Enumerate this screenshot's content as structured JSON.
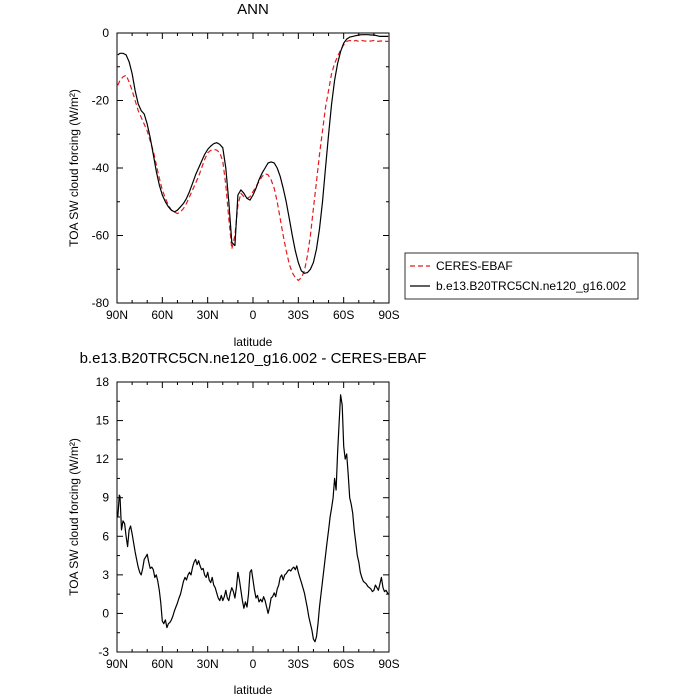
{
  "chart_data": [
    {
      "type": "line",
      "title": "ANN",
      "xlabel": "latitude",
      "ylabel": "TOA SW cloud forcing (W/m²)",
      "x_ticks": [
        90,
        60,
        30,
        0,
        -30,
        -60,
        -90
      ],
      "x_tick_labels": [
        "90N",
        "60N",
        "30N",
        "0",
        "30S",
        "60S",
        "90S"
      ],
      "xlim": [
        90,
        -90
      ],
      "ylim": [
        -80,
        0
      ],
      "y_ticks": [
        0,
        -20,
        -40,
        -60,
        -80
      ],
      "y_tick_labels": [
        "0",
        "-20",
        "-40",
        "-60",
        "-80"
      ],
      "legend_position": "right",
      "series": [
        {
          "name": "CERES-EBAF",
          "color": "#e41a1c",
          "style": "dashed",
          "x": [
            89.5,
            88,
            86,
            84,
            82,
            80,
            78,
            76,
            74,
            72,
            70,
            68,
            66,
            64,
            62,
            60,
            58,
            56,
            54,
            52,
            50,
            48,
            46,
            44,
            42,
            40,
            38,
            36,
            34,
            32,
            30,
            28,
            26,
            24,
            22,
            20,
            18,
            16,
            14,
            12,
            10,
            8,
            6,
            4,
            2,
            0,
            -2,
            -4,
            -6,
            -8,
            -10,
            -12,
            -14,
            -16,
            -18,
            -20,
            -22,
            -24,
            -26,
            -28,
            -30,
            -32,
            -34,
            -36,
            -38,
            -40,
            -42,
            -44,
            -46,
            -48,
            -50,
            -52,
            -54,
            -56,
            -58,
            -60,
            -62,
            -64,
            -66,
            -68,
            -70,
            -72,
            -74,
            -76,
            -78,
            -80,
            -82,
            -84,
            -86,
            -88,
            -89.5
          ],
          "y": [
            -15.5,
            -14,
            -13,
            -12.5,
            -14.5,
            -17,
            -20,
            -23,
            -25,
            -27,
            -29,
            -32,
            -35,
            -39,
            -43,
            -46.5,
            -49,
            -51,
            -52.5,
            -53,
            -53.5,
            -53,
            -52,
            -50.5,
            -48.5,
            -46.5,
            -44.5,
            -42.5,
            -40,
            -37.5,
            -35.5,
            -34.8,
            -34.5,
            -34.7,
            -35.5,
            -38,
            -45,
            -55,
            -64,
            -60,
            -51,
            -47.5,
            -48.5,
            -49,
            -48.5,
            -47,
            -45.5,
            -44,
            -42.5,
            -41.7,
            -42,
            -43.5,
            -46,
            -50,
            -55,
            -60,
            -64.5,
            -68.5,
            -71,
            -72.5,
            -73.3,
            -72.5,
            -70.5,
            -66,
            -60,
            -52,
            -44,
            -36,
            -29,
            -22,
            -17,
            -12,
            -9,
            -7,
            -5,
            -3.5,
            -2.5,
            -2.2,
            -2.5,
            -2.2,
            -2.5,
            -2.2,
            -2.4,
            -2.3,
            -2.4,
            -2.2,
            -2.5,
            -2.4,
            -2.3,
            -2.5,
            -2.5
          ]
        },
        {
          "name": "b.e13.B20TRC5CN.ne120_g16.002",
          "color": "#000000",
          "style": "solid",
          "x": [
            89.5,
            88,
            86,
            84,
            82,
            80,
            78,
            76,
            74,
            72,
            70,
            68,
            66,
            64,
            62,
            60,
            58,
            56,
            54,
            52,
            50,
            48,
            46,
            44,
            42,
            40,
            38,
            36,
            34,
            32,
            30,
            28,
            26,
            24,
            22,
            20,
            18,
            16,
            14,
            12,
            10,
            8,
            6,
            4,
            2,
            0,
            -2,
            -4,
            -6,
            -8,
            -10,
            -12,
            -14,
            -16,
            -18,
            -20,
            -22,
            -24,
            -26,
            -28,
            -30,
            -32,
            -34,
            -36,
            -38,
            -40,
            -42,
            -44,
            -46,
            -48,
            -50,
            -52,
            -54,
            -56,
            -58,
            -60,
            -62,
            -64,
            -66,
            -68,
            -70,
            -72,
            -74,
            -76,
            -78,
            -80,
            -82,
            -84,
            -86,
            -88,
            -89.5
          ],
          "y": [
            -6.5,
            -6,
            -6,
            -6.5,
            -8.5,
            -12,
            -17,
            -21,
            -23,
            -24,
            -27,
            -31,
            -36,
            -41,
            -45,
            -48,
            -50,
            -51.5,
            -52.5,
            -53,
            -52.5,
            -51.5,
            -50.5,
            -49,
            -47,
            -44.5,
            -42,
            -40,
            -38,
            -36,
            -34.5,
            -33.5,
            -32.8,
            -32.5,
            -33,
            -34,
            -40,
            -50,
            -62,
            -63,
            -48,
            -46.5,
            -47.5,
            -49,
            -49.5,
            -48,
            -46,
            -43.5,
            -41.5,
            -40,
            -38.5,
            -38.2,
            -38.5,
            -40,
            -42.5,
            -46,
            -50,
            -55,
            -60,
            -64.5,
            -68,
            -70.5,
            -71.2,
            -71,
            -70,
            -68,
            -64,
            -58,
            -50,
            -40,
            -30,
            -21,
            -14,
            -9,
            -5.5,
            -3,
            -1.8,
            -1.2,
            -1,
            -0.8,
            -0.6,
            -0.5,
            -0.5,
            -0.5,
            -0.6,
            -0.6,
            -0.8,
            -1,
            -1,
            -1,
            -1
          ]
        }
      ]
    },
    {
      "type": "line",
      "title": "b.e13.B20TRC5CN.ne120_g16.002 - CERES-EBAF",
      "xlabel": "latitude",
      "ylabel": "TOA SW cloud forcing (W/m²)",
      "x_ticks": [
        90,
        60,
        30,
        0,
        -30,
        -60,
        -90
      ],
      "x_tick_labels": [
        "90N",
        "60N",
        "30N",
        "0",
        "30S",
        "60S",
        "90S"
      ],
      "xlim": [
        90,
        -90
      ],
      "ylim": [
        -3,
        18
      ],
      "y_ticks": [
        18,
        15,
        12,
        9,
        6,
        3,
        0,
        -3
      ],
      "y_tick_labels": [
        "18",
        "15",
        "12",
        "9",
        "6",
        "3",
        "0",
        "-3"
      ],
      "series": [
        {
          "color": "#000000",
          "style": "solid",
          "x": [
            89.5,
            88.5,
            88,
            87,
            86,
            85,
            84,
            83,
            82,
            81,
            80,
            79,
            78,
            77,
            76,
            75,
            74,
            73,
            72,
            71,
            70,
            69,
            68,
            67,
            66,
            65,
            64,
            63,
            62,
            61,
            60,
            59,
            58,
            57,
            56,
            55,
            54,
            53,
            52,
            51,
            50,
            49,
            48,
            47,
            46,
            45,
            44,
            43,
            42,
            41,
            40,
            39,
            38,
            37,
            36,
            35,
            34,
            33,
            32,
            31,
            30,
            29,
            28,
            27,
            26,
            25,
            24,
            23,
            22,
            21,
            20,
            19,
            18,
            17,
            16,
            15,
            14,
            13,
            12,
            11,
            10,
            9,
            8,
            7,
            6,
            5,
            4,
            3,
            2,
            1,
            0,
            -1,
            -2,
            -3,
            -4,
            -5,
            -6,
            -7,
            -8,
            -9,
            -10,
            -11,
            -12,
            -13,
            -14,
            -15,
            -16,
            -17,
            -18,
            -19,
            -20,
            -21,
            -22,
            -23,
            -24,
            -25,
            -26,
            -27,
            -28,
            -29,
            -30,
            -31,
            -32,
            -33,
            -34,
            -35,
            -36,
            -37,
            -38,
            -39,
            -40,
            -41,
            -42,
            -43,
            -44,
            -45,
            -46,
            -47,
            -48,
            -49,
            -50,
            -51,
            -52,
            -53,
            -54,
            -55,
            -56,
            -57,
            -58,
            -59,
            -60,
            -61,
            -62,
            -63,
            -64,
            -65,
            -66,
            -67,
            -68,
            -69,
            -70,
            -71,
            -72,
            -73,
            -74,
            -75,
            -76,
            -77,
            -78,
            -79,
            -80,
            -81,
            -82,
            -83,
            -84,
            -85,
            -86,
            -87,
            -88,
            -89,
            -89.5
          ],
          "y": [
            7.5,
            9.2,
            9.1,
            6.5,
            7.2,
            7.0,
            6.0,
            5.2,
            6.5,
            6.8,
            6.2,
            5.5,
            4.8,
            4.2,
            3.6,
            3.2,
            3.0,
            3.5,
            4.2,
            4.4,
            4.6,
            4.0,
            3.5,
            3.6,
            3.4,
            2.8,
            3.0,
            2.5,
            1.8,
            0.8,
            -0.6,
            -0.8,
            -0.5,
            -1.1,
            -0.8,
            -0.7,
            -0.5,
            -0.2,
            0.2,
            0.5,
            0.8,
            1.2,
            1.5,
            2.0,
            2.5,
            2.8,
            2.6,
            3.0,
            3.2,
            3.0,
            3.6,
            4.0,
            4.2,
            3.8,
            4.1,
            3.7,
            3.4,
            3.5,
            3.0,
            2.8,
            3.2,
            2.6,
            2.4,
            2.8,
            2.2,
            2.0,
            1.6,
            1.2,
            1.0,
            1.4,
            1.0,
            1.3,
            1.8,
            1.2,
            1.0,
            1.6,
            2.0,
            1.7,
            1.2,
            2.0,
            3.2,
            2.6,
            1.8,
            1.0,
            0.4,
            0.9,
            0.5,
            1.5,
            3.2,
            3.4,
            2.6,
            1.8,
            1.2,
            1.4,
            0.9,
            1.1,
            0.9,
            1.3,
            1.0,
            0.5,
            0.0,
            0.5,
            1.2,
            1.3,
            1.6,
            1.3,
            1.9,
            2.2,
            2.8,
            3.0,
            2.6,
            3.0,
            3.1,
            3.3,
            3.4,
            3.3,
            3.5,
            3.6,
            3.4,
            3.7,
            3.2,
            2.8,
            2.4,
            2.0,
            1.6,
            1.0,
            0.4,
            -0.3,
            -0.8,
            -1.3,
            -2.0,
            -2.2,
            -1.8,
            -0.8,
            0.5,
            1.5,
            2.5,
            3.5,
            4.5,
            5.5,
            6.5,
            7.5,
            8.2,
            9.0,
            10.5,
            9.6,
            12.5,
            14.8,
            17.0,
            16.2,
            13.0,
            12.0,
            12.4,
            10.8,
            9.0,
            8.5,
            7.8,
            6.5,
            5.5,
            4.5,
            4.0,
            3.2,
            2.8,
            2.5,
            2.4,
            2.3,
            2.1,
            2.0,
            1.9,
            1.7,
            1.8,
            2.2,
            2.0,
            1.8,
            2.3,
            2.8,
            2.0,
            1.7,
            1.8,
            1.6,
            1.5
          ]
        }
      ]
    }
  ]
}
